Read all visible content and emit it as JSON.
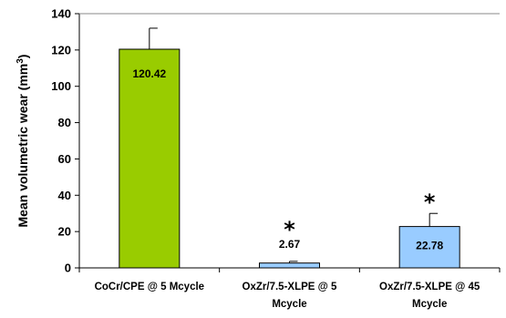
{
  "chart_data": {
    "type": "bar",
    "categories": [
      [
        "CoCr/CPE @ 5 Mcycle"
      ],
      [
        "OxZr/7.5-XLPE @ 5",
        "Mcycle"
      ],
      [
        "OxZr/7.5-XLPE @ 45",
        "Mcycle"
      ]
    ],
    "values": [
      120.42,
      2.67,
      22.78
    ],
    "value_labels": [
      "120.42",
      "2.67",
      "22.78"
    ],
    "error_upper": [
      132,
      3.6,
      30
    ],
    "significance": [
      "",
      "*",
      "*"
    ],
    "bar_colors": [
      "#99cc00",
      "#99ccff",
      "#99ccff"
    ],
    "ylabel": "Mean volumetric wear (mm",
    "ylabel_sup": "3",
    "ylabel_close": ")",
    "ylim": [
      0,
      140
    ],
    "yticks": [
      0,
      20,
      40,
      60,
      80,
      100,
      120,
      140
    ],
    "grid": false
  }
}
